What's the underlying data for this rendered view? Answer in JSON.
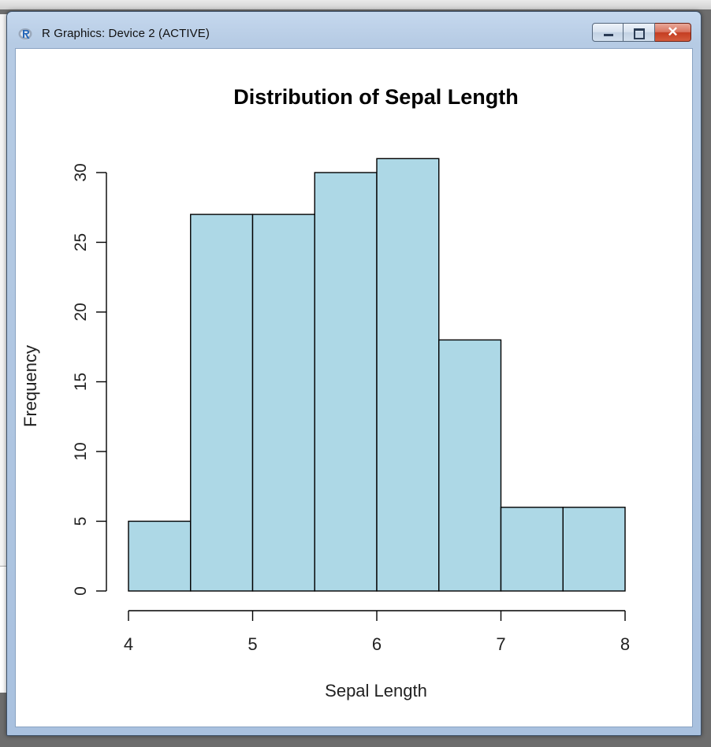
{
  "window": {
    "title": "R Graphics: Device 2 (ACTIVE)",
    "icon": "r-logo-icon",
    "buttons": {
      "minimize_icon": "minimize-icon",
      "maximize_icon": "maximize-icon",
      "close_icon": "close-icon",
      "close_glyph": "✕"
    },
    "colors": {
      "close_button": "#c43d21",
      "frame": "#b6cbe4"
    }
  },
  "chart_data": {
    "type": "bar",
    "title": "Distribution of Sepal Length",
    "xlabel": "Sepal Length",
    "ylabel": "Frequency",
    "bins": [
      [
        4.0,
        4.5
      ],
      [
        4.5,
        5.0
      ],
      [
        5.0,
        5.5
      ],
      [
        5.5,
        6.0
      ],
      [
        6.0,
        6.5
      ],
      [
        6.5,
        7.0
      ],
      [
        7.0,
        7.5
      ],
      [
        7.5,
        8.0
      ]
    ],
    "values": [
      5,
      27,
      27,
      30,
      31,
      18,
      6,
      6
    ],
    "xlim": [
      4,
      8
    ],
    "ylim": [
      0,
      31
    ],
    "x_ticks": [
      4,
      5,
      6,
      7,
      8
    ],
    "y_ticks": [
      0,
      5,
      10,
      15,
      20,
      25,
      30
    ],
    "bar_color": "#add8e6",
    "border_color": "#000000",
    "grid": false,
    "legend": "none"
  }
}
